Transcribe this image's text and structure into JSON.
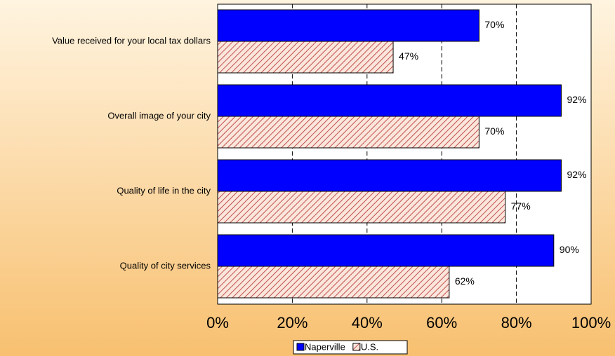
{
  "chart_data": {
    "type": "hbar",
    "categories": [
      "Value received for your local tax dollars",
      "Overall image of your city",
      "Quality of life in the city",
      "Quality of city services"
    ],
    "series": [
      {
        "name": "Naperville",
        "color": "#0000ff",
        "values": [
          70,
          92,
          92,
          90
        ],
        "value_labels": [
          "70%",
          "92%",
          "92%",
          "90%"
        ]
      },
      {
        "name": "U.S.",
        "color": "#c0504d",
        "pattern": "hatch",
        "values": [
          47,
          70,
          77,
          62
        ],
        "value_labels": [
          "47%",
          "70%",
          "77%",
          "62%"
        ]
      }
    ],
    "xlim": [
      0,
      100
    ],
    "xticks": [
      {
        "value": 0,
        "label": "0%"
      },
      {
        "value": 20,
        "label": "20%"
      },
      {
        "value": 40,
        "label": "40%"
      },
      {
        "value": 60,
        "label": "60%"
      },
      {
        "value": 80,
        "label": "80%"
      },
      {
        "value": 100,
        "label": "100%"
      }
    ],
    "grid": true,
    "legend": "bottom"
  }
}
